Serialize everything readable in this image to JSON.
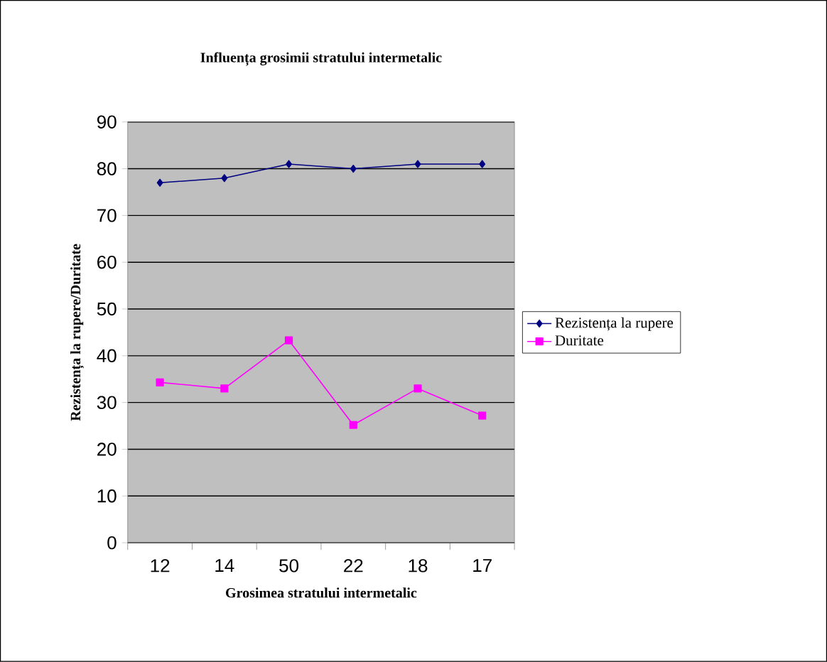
{
  "chart_data": {
    "type": "line",
    "title": "Influența grosimii stratului intermetalic",
    "xlabel": "Grosimea stratului intermetalic",
    "ylabel": "Rezistența la rupere/Duritate",
    "categories": [
      "12",
      "14",
      "50",
      "22",
      "18",
      "17"
    ],
    "series": [
      {
        "name": "Rezistența la rupere",
        "color": "#000080",
        "marker": "diamond",
        "values": [
          77,
          78,
          81,
          80,
          81,
          81
        ]
      },
      {
        "name": "Duritate",
        "color": "#ff00ff",
        "marker": "square",
        "values": [
          34.3,
          33,
          43.3,
          25.2,
          33,
          27.2
        ]
      }
    ],
    "ylim": [
      0,
      90
    ],
    "yticks": [
      0,
      10,
      20,
      30,
      40,
      50,
      60,
      70,
      80,
      90
    ],
    "grid": "y",
    "legend": "right",
    "line_style": "solid"
  }
}
